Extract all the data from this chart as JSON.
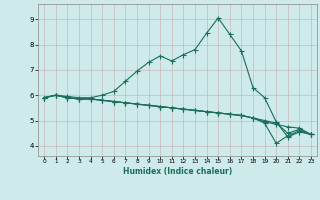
{
  "xlabel": "Humidex (Indice chaleur)",
  "xlim": [
    -0.5,
    23.5
  ],
  "ylim": [
    3.6,
    9.6
  ],
  "yticks": [
    4,
    5,
    6,
    7,
    8,
    9
  ],
  "xticks": [
    0,
    1,
    2,
    3,
    4,
    5,
    6,
    7,
    8,
    9,
    10,
    11,
    12,
    13,
    14,
    15,
    16,
    17,
    18,
    19,
    20,
    21,
    22,
    23
  ],
  "bg_color": "#ceeaea",
  "grid_color": "#c8b8b8",
  "line_color": "#1a6e5e",
  "line1_y": [
    5.9,
    6.0,
    5.95,
    5.9,
    5.9,
    6.0,
    6.15,
    6.55,
    6.95,
    7.3,
    7.55,
    7.35,
    7.6,
    7.8,
    8.45,
    9.05,
    8.4,
    7.75,
    6.3,
    5.9,
    4.95,
    4.35,
    4.55,
    4.45
  ],
  "line2_y": [
    5.9,
    6.0,
    5.9,
    5.85,
    5.85,
    5.8,
    5.75,
    5.7,
    5.65,
    5.6,
    5.55,
    5.5,
    5.45,
    5.4,
    5.35,
    5.3,
    5.25,
    5.2,
    5.1,
    5.0,
    4.9,
    4.5,
    4.65,
    4.45
  ],
  "line3_y": [
    5.9,
    6.0,
    5.9,
    5.85,
    5.85,
    5.8,
    5.75,
    5.7,
    5.65,
    5.6,
    5.55,
    5.5,
    5.45,
    5.4,
    5.35,
    5.3,
    5.25,
    5.2,
    5.1,
    4.9,
    4.1,
    4.4,
    4.6,
    4.45
  ],
  "line4_y": [
    5.9,
    6.0,
    5.9,
    5.85,
    5.85,
    5.8,
    5.75,
    5.7,
    5.65,
    5.6,
    5.55,
    5.5,
    5.45,
    5.4,
    5.35,
    5.3,
    5.25,
    5.2,
    5.1,
    4.95,
    4.85,
    4.75,
    4.7,
    4.45
  ]
}
